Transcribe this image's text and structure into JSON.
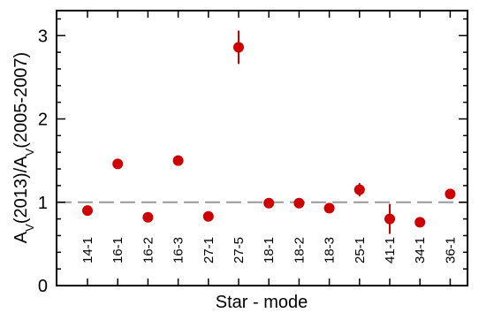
{
  "chart_data": {
    "type": "scatter",
    "title": "",
    "xlabel": "Star - mode",
    "ylabel": {
      "parts": [
        {
          "text": "A",
          "sub": false
        },
        {
          "text": "V",
          "sub": true
        },
        {
          "text": "(2013)/A",
          "sub": false
        },
        {
          "text": "V",
          "sub": true
        },
        {
          "text": "(2005-2007)",
          "sub": false
        }
      ]
    },
    "categories": [
      "14-1",
      "16-1",
      "16-2",
      "16-3",
      "27-1",
      "27-5",
      "18-1",
      "18-2",
      "18-3",
      "25-1",
      "41-1",
      "34-1",
      "36-1"
    ],
    "values": [
      0.9,
      1.46,
      0.82,
      1.5,
      0.83,
      2.86,
      0.99,
      0.99,
      0.93,
      1.15,
      0.8,
      0.76,
      1.1
    ],
    "error_low": [
      0.0,
      0.0,
      0.0,
      0.0,
      0.0,
      0.2,
      0.0,
      0.0,
      0.0,
      0.08,
      0.18,
      0.0,
      0.0
    ],
    "error_high": [
      0.0,
      0.0,
      0.0,
      0.0,
      0.0,
      0.2,
      0.0,
      0.0,
      0.0,
      0.08,
      0.18,
      0.0,
      0.0
    ],
    "ylim": [
      0,
      3.3
    ],
    "yticks": [
      0,
      1,
      2,
      3
    ],
    "reference_line": {
      "y": 1,
      "style": "dashed",
      "color": "#999999"
    },
    "marker_color": "#cc0000",
    "grid": false
  }
}
